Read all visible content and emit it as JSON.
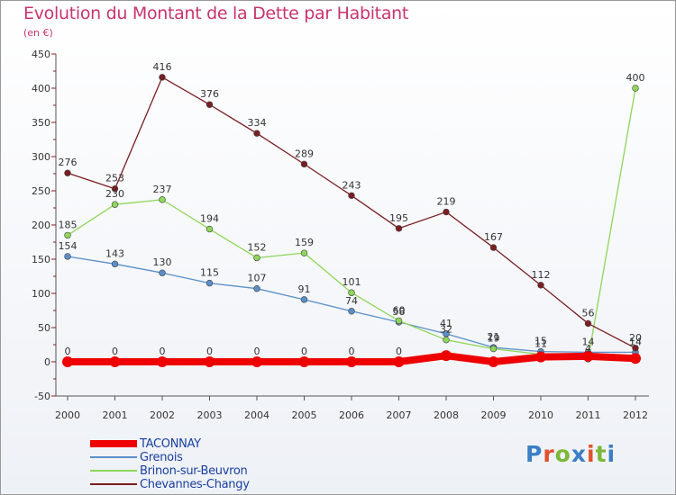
{
  "title": "Evolution du Montant de la Dette par Habitant",
  "unit": "(en €)",
  "logo": {
    "text": "Proxiti",
    "letter_colors": [
      "#3a7fc4",
      "#e0522c",
      "#7cb83a",
      "#3a7fc4",
      "#e0522c",
      "#7cb83a",
      "#3a7fc4"
    ]
  },
  "chart_data": {
    "type": "line",
    "x": [
      2000,
      2001,
      2002,
      2003,
      2004,
      2005,
      2006,
      2007,
      2008,
      2009,
      2010,
      2011,
      2012
    ],
    "ylim": [
      -50,
      450
    ],
    "yticks": [
      -50,
      0,
      50,
      100,
      150,
      200,
      250,
      300,
      350,
      400,
      450
    ],
    "grid": false,
    "legend_position": "bottom-left",
    "series": [
      {
        "name": "TACONNAY",
        "color": "#ee0000",
        "values": [
          0,
          0,
          0,
          0,
          0,
          0,
          0,
          0,
          9,
          0,
          7,
          8,
          5
        ],
        "labels": [
          "0",
          "0",
          "0",
          "0",
          "0",
          "0",
          "0",
          "0",
          "9",
          "0",
          "7",
          "8",
          "5"
        ],
        "shown_labels": [
          true,
          true,
          true,
          true,
          true,
          true,
          true,
          true,
          false,
          false,
          false,
          false,
          false
        ]
      },
      {
        "name": "Grenois",
        "color": "#5b8fc9",
        "values": [
          154,
          143,
          130,
          115,
          107,
          91,
          74,
          58,
          41,
          21,
          15,
          14,
          14
        ],
        "labels": [
          "154",
          "143",
          "130",
          "115",
          "107",
          "91",
          "74",
          "58",
          "41",
          "21",
          "15",
          "14",
          "14"
        ],
        "shown_labels": [
          true,
          true,
          true,
          true,
          true,
          true,
          true,
          true,
          true,
          true,
          true,
          true,
          true
        ]
      },
      {
        "name": "Brinon-sur-Beuvron",
        "color": "#8fd65a",
        "values": [
          185,
          230,
          237,
          194,
          152,
          159,
          101,
          60,
          32,
          19,
          11,
          4,
          400
        ],
        "labels": [
          "185",
          "230",
          "237",
          "194",
          "152",
          "159",
          "101",
          "60",
          "32",
          "19",
          "11",
          "4",
          "400"
        ],
        "shown_labels": [
          true,
          true,
          true,
          true,
          true,
          true,
          true,
          true,
          true,
          true,
          true,
          true,
          true
        ]
      },
      {
        "name": "Chevannes-Changy",
        "color": "#7a1e22",
        "values": [
          276,
          253,
          416,
          376,
          334,
          289,
          243,
          195,
          219,
          167,
          112,
          56,
          20
        ],
        "labels": [
          "276",
          "253",
          "416",
          "376",
          "334",
          "289",
          "243",
          "195",
          "219",
          "167",
          "112",
          "56",
          "20"
        ],
        "shown_labels": [
          true,
          true,
          true,
          true,
          true,
          true,
          true,
          true,
          true,
          true,
          true,
          true,
          true
        ]
      }
    ]
  }
}
